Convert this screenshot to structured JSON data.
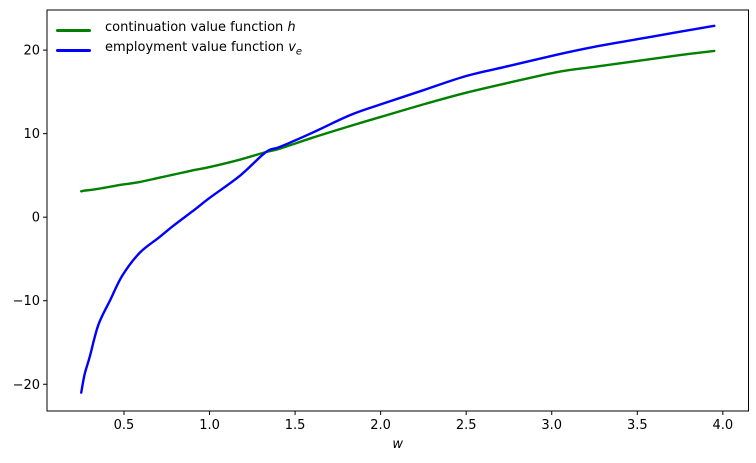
{
  "figure": {
    "background": "#ffffff",
    "legend": {
      "items": [
        {
          "label_prefix": "continuation value function ",
          "math_base": "h",
          "math_sub": "",
          "color": "#008000"
        },
        {
          "label_prefix": "employment value function ",
          "math_base": "v",
          "math_sub": "e",
          "color": "#0000ff"
        }
      ]
    }
  },
  "chart_data": {
    "type": "line",
    "title": "",
    "xlabel": "w",
    "ylabel": "",
    "xlim": [
      0.05,
      4.15
    ],
    "ylim": [
      -23.2,
      24.8
    ],
    "grid": false,
    "legend_position": "upper left",
    "xticks": {
      "values": [
        0.5,
        1.0,
        1.5,
        2.0,
        2.5,
        3.0,
        3.5,
        4.0
      ],
      "labels": [
        "0.5",
        "1.0",
        "1.5",
        "2.0",
        "2.5",
        "3.0",
        "3.5",
        "4.0"
      ]
    },
    "yticks": {
      "values": [
        -20,
        -10,
        0,
        10,
        20
      ],
      "labels": [
        "−20",
        "−10",
        "0",
        "10",
        "20"
      ]
    },
    "x": [
      0.25,
      0.27,
      0.3,
      0.35,
      0.42,
      0.49,
      0.59,
      0.7,
      0.79,
      0.9,
      1.0,
      1.18,
      1.33,
      1.41,
      1.6,
      1.82,
      2.0,
      2.25,
      2.5,
      2.75,
      3.04,
      3.25,
      3.5,
      3.75,
      3.95
    ],
    "series": [
      {
        "name": "continuation value function h",
        "color": "#008000",
        "linewidth": 2,
        "values": [
          3.1,
          3.18,
          3.25,
          3.4,
          3.65,
          3.9,
          4.2,
          4.7,
          5.1,
          5.6,
          6.0,
          6.9,
          7.8,
          8.2,
          9.5,
          10.9,
          12.0,
          13.5,
          14.9,
          16.1,
          17.4,
          18.0,
          18.7,
          19.4,
          19.9
        ]
      },
      {
        "name": "employment value function v_e",
        "color": "#0000ff",
        "linewidth": 2,
        "values": [
          -21.0,
          -18.8,
          -16.7,
          -12.9,
          -9.9,
          -7.0,
          -4.3,
          -2.5,
          -1.0,
          0.7,
          2.3,
          5.0,
          7.8,
          8.4,
          10.1,
          12.2,
          13.5,
          15.2,
          16.9,
          18.1,
          19.5,
          20.4,
          21.3,
          22.2,
          22.9
        ]
      }
    ]
  }
}
